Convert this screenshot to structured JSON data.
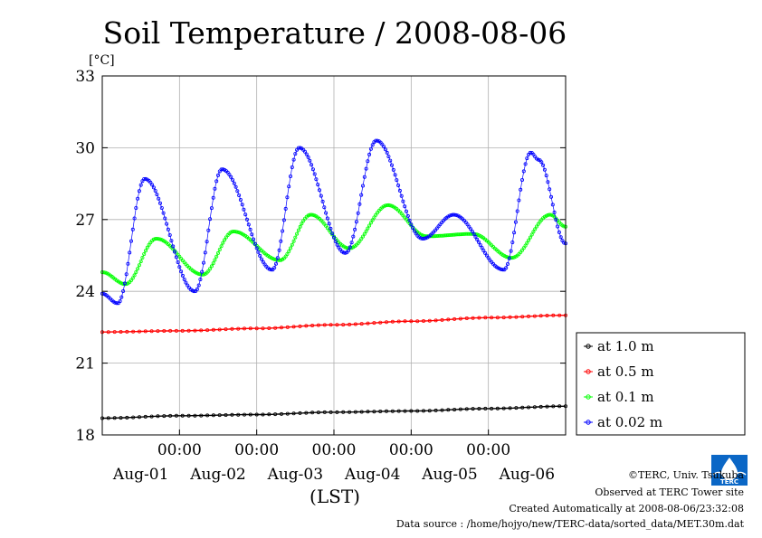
{
  "chart_data": {
    "type": "line",
    "title": "Soil Temperature / 2008-08-06",
    "ylabel": "[°C]",
    "xlabel": "(LST)",
    "ylim": [
      18,
      33
    ],
    "yticks": [
      18,
      21,
      24,
      27,
      30,
      33
    ],
    "xlim": [
      0,
      6
    ],
    "x_time_ticks": [
      "00:00",
      "00:00",
      "00:00",
      "00:00",
      "00:00"
    ],
    "x_date_labels": [
      "Aug-01",
      "Aug-02",
      "Aug-03",
      "Aug-04",
      "Aug-05",
      "Aug-06"
    ],
    "grid": true,
    "legend_position": "right",
    "series": [
      {
        "name": "at 1.0 m",
        "color": "#000000",
        "x": [
          0,
          1,
          2,
          3,
          4,
          5,
          6
        ],
        "y": [
          18.7,
          18.8,
          18.85,
          18.95,
          19.0,
          19.1,
          19.2
        ]
      },
      {
        "name": "at 0.5 m",
        "color": "#ff0000",
        "x": [
          0,
          1,
          2,
          3,
          4,
          5,
          6
        ],
        "y": [
          22.3,
          22.35,
          22.45,
          22.6,
          22.75,
          22.9,
          23.0
        ]
      },
      {
        "name": "at 0.1 m",
        "color": "#00ff00",
        "x": [
          0,
          0.3,
          0.7,
          1.3,
          1.7,
          2.3,
          2.7,
          3.2,
          3.7,
          4.2,
          4.8,
          5.3,
          5.8,
          6.0
        ],
        "y": [
          24.8,
          24.3,
          26.2,
          24.7,
          26.5,
          25.3,
          27.2,
          25.8,
          27.6,
          26.3,
          26.4,
          25.4,
          27.2,
          26.7
        ]
      },
      {
        "name": "at 0.02 m",
        "color": "#0000ff",
        "x": [
          0,
          0.2,
          0.55,
          1.2,
          1.55,
          2.2,
          2.55,
          3.15,
          3.55,
          4.15,
          4.55,
          5.2,
          5.55,
          5.65,
          6.0
        ],
        "y": [
          23.9,
          23.5,
          28.7,
          24.0,
          29.1,
          24.9,
          30.0,
          25.6,
          30.3,
          26.2,
          27.2,
          24.9,
          29.8,
          29.5,
          26.0
        ]
      }
    ]
  },
  "credits": {
    "copyright": "©TERC, Univ. Tsukuba",
    "observed": "Observed at TERC Tower site",
    "created": "Created Automatically at 2008-08-06/23:32:08",
    "source": "Data source : /home/hojyo/new/TERC-data/sorted_data/MET.30m.dat"
  },
  "logo": {
    "text": "TERC",
    "icon": "terc-logo-icon",
    "color": "#0b67c6"
  }
}
